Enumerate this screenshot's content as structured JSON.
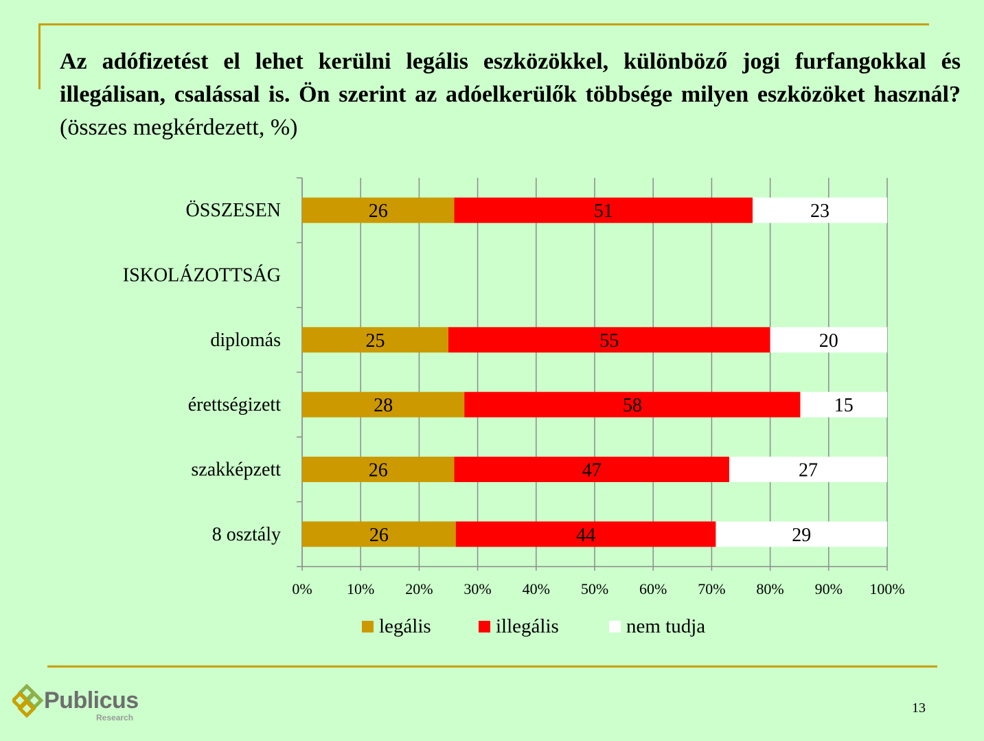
{
  "slide": {
    "title_bold": "Az adófizetést el lehet kerülni legális eszközökkel, különböző jogi furfangokkal és illegálisan, csalással is. Ön szerint az adóelkerülők többsége milyen eszközöket használ?",
    "title_normal": " (összes megkérdezett, %)",
    "page_number": "13",
    "logo_text": "Publicus",
    "logo_sub": "Research"
  },
  "colors": {
    "background": "#ccffcc",
    "accent_rule": "#c8a000",
    "legalis": "#cc9900",
    "illegalis": "#ff0000",
    "nem_tudja": "#ffffff"
  },
  "chart_data": {
    "type": "bar",
    "orientation": "horizontal",
    "stacked": "percent",
    "categories": [
      "ÖSSZESEN",
      "ISKOLÁZOTTSÁG",
      "diplomás",
      "érettségizett",
      "szakképzett",
      "8 osztály"
    ],
    "series": [
      {
        "name": "legális",
        "values": [
          26,
          null,
          25,
          28,
          26,
          26
        ]
      },
      {
        "name": "illegális",
        "values": [
          51,
          null,
          55,
          58,
          47,
          44
        ]
      },
      {
        "name": "nem tudja",
        "values": [
          23,
          null,
          20,
          15,
          27,
          29
        ]
      }
    ],
    "xticks": [
      "0%",
      "10%",
      "20%",
      "30%",
      "40%",
      "50%",
      "60%",
      "70%",
      "80%",
      "90%",
      "100%"
    ],
    "xlim": [
      0,
      100
    ],
    "grid": "vertical",
    "legend": "bottom"
  }
}
